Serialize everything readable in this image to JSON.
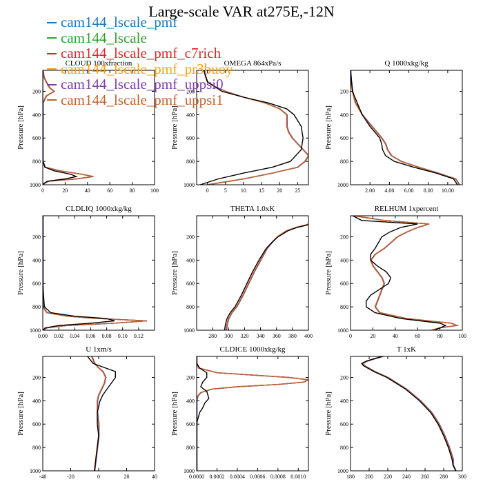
{
  "figure_title": "Large-scale VAR at275E,-12N",
  "legend": [
    {
      "name": "cam144_lscale_pmf",
      "color": "#1f77b4"
    },
    {
      "name": "cam144_lscale",
      "color": "#2ca02c"
    },
    {
      "name": "cam144_lscale_pmf_c7rich",
      "color": "#d62728"
    },
    {
      "name": "cam144_lscale_pmf_pr3buoy",
      "color": "#ff9f0e"
    },
    {
      "name": "cam144_lscale_pmf_uppsi0",
      "color": "#7b3fa6"
    },
    {
      "name": "cam144_lscale_pmf_uppsi1",
      "color": "#c0622f"
    }
  ],
  "colors": {
    "control": "#000000",
    "grid_frame": "#000000"
  },
  "chart_data": [
    {
      "type": "line",
      "title": "CLOUD 100xfraction",
      "ylabel": "Pressure [hPa]",
      "xlim": [
        0,
        100
      ],
      "xticks": [
        0,
        20,
        40,
        60,
        80,
        100
      ],
      "xtick_labels": [
        "0",
        "20",
        "40",
        "60",
        "80",
        "100"
      ],
      "ylim": [
        1000,
        20
      ],
      "yticks": [
        200,
        400,
        600,
        800,
        1000
      ],
      "ytick_labels": [
        "200",
        "400",
        "600",
        "800",
        "1000"
      ],
      "series": [
        {
          "style": "multi",
          "pressure": [
            20,
            80,
            120,
            170,
            200,
            240,
            300,
            400,
            500,
            600,
            700,
            800,
            850,
            880,
            910,
            930,
            950,
            970,
            990,
            1000
          ],
          "values": [
            0,
            1,
            3,
            6,
            10,
            3,
            0,
            0,
            0,
            0,
            0,
            0,
            2,
            15,
            35,
            45,
            30,
            5,
            1,
            0
          ]
        },
        {
          "style": "control",
          "pressure": [
            20,
            300,
            600,
            800,
            850,
            880,
            910,
            930,
            950,
            970,
            990,
            1000
          ],
          "values": [
            0,
            0,
            0,
            0,
            2,
            10,
            25,
            30,
            20,
            4,
            1,
            0
          ]
        }
      ]
    },
    {
      "type": "line",
      "title": "OMEGA 864xPa/s",
      "ylabel": "Pressure [hPa]",
      "xlim": [
        -3,
        28
      ],
      "xticks": [
        0,
        5,
        10,
        15,
        20,
        25
      ],
      "xtick_labels": [
        "0",
        "5",
        "10",
        "15",
        "20",
        "25"
      ],
      "ylim": [
        1000,
        20
      ],
      "yticks": [
        200,
        400,
        600,
        800,
        1000
      ],
      "ytick_labels": [
        "200",
        "400",
        "600",
        "800",
        "1000"
      ],
      "series": [
        {
          "style": "multi",
          "pressure": [
            20,
            80,
            120,
            160,
            200,
            250,
            300,
            350,
            400,
            450,
            500,
            550,
            600,
            650,
            700,
            750,
            800,
            850,
            900,
            950,
            1000
          ],
          "values": [
            -1,
            -0.5,
            0,
            2,
            5,
            10,
            16,
            20,
            22,
            22,
            22,
            22.5,
            23.5,
            25,
            26.5,
            28,
            27,
            25,
            18,
            10,
            0
          ]
        },
        {
          "style": "control",
          "pressure": [
            20,
            120,
            200,
            250,
            300,
            350,
            400,
            450,
            500,
            600,
            700,
            800,
            850,
            900,
            950,
            1000
          ],
          "values": [
            -1,
            0,
            4,
            10,
            17,
            22,
            24,
            25,
            26,
            26.5,
            26,
            23,
            18,
            10,
            3,
            -2
          ]
        }
      ]
    },
    {
      "type": "line",
      "title": "Q 1000xkg/kg",
      "ylabel": "Pressure [hPa]",
      "xlim": [
        0,
        11.5
      ],
      "xticks": [
        2,
        4,
        6,
        8,
        10
      ],
      "xtick_labels": [
        "2.00",
        "4.00",
        "6.00",
        "8.00",
        "10.00"
      ],
      "ylim": [
        1000,
        20
      ],
      "yticks": [
        200,
        400,
        600,
        800,
        1000
      ],
      "ytick_labels": [
        "200",
        "400",
        "600",
        "800",
        "1000"
      ],
      "series": [
        {
          "style": "multi",
          "pressure": [
            20,
            100,
            200,
            300,
            400,
            500,
            600,
            650,
            700,
            750,
            800,
            850,
            900,
            950,
            1000
          ],
          "values": [
            0,
            0.05,
            0.2,
            0.5,
            1.2,
            2.2,
            3.2,
            3.6,
            3.8,
            4.2,
            5.2,
            7,
            9,
            10.8,
            11.2
          ]
        },
        {
          "style": "control",
          "pressure": [
            20,
            200,
            400,
            500,
            600,
            650,
            700,
            750,
            800,
            850,
            900,
            950,
            1000
          ],
          "values": [
            0,
            0.2,
            1.2,
            2.0,
            3.0,
            3.2,
            3.3,
            3.6,
            4.5,
            6.5,
            8.8,
            10.6,
            11.0
          ]
        }
      ]
    },
    {
      "type": "line",
      "title": "CLDLIQ 1000xkg/kg",
      "ylabel": "Pressure [hPa]",
      "xlim": [
        0,
        0.14
      ],
      "xticks": [
        0,
        0.02,
        0.04,
        0.06,
        0.08,
        0.1,
        0.12
      ],
      "xtick_labels": [
        "0.00",
        "0.02",
        "0.04",
        "0.06",
        "0.08",
        "0.10",
        "0.12"
      ],
      "ylim": [
        1000,
        20
      ],
      "yticks": [
        200,
        400,
        600,
        800,
        1000
      ],
      "ytick_labels": [
        "200",
        "400",
        "600",
        "800",
        "1000"
      ],
      "series": [
        {
          "style": "multi",
          "pressure": [
            20,
            600,
            800,
            850,
            880,
            900,
            920,
            940,
            960,
            980,
            1000
          ],
          "values": [
            0,
            0,
            0,
            0.005,
            0.03,
            0.07,
            0.13,
            0.09,
            0.03,
            0.005,
            0
          ]
        },
        {
          "style": "control",
          "pressure": [
            20,
            600,
            800,
            850,
            880,
            900,
            920,
            940,
            960,
            980,
            1000
          ],
          "values": [
            0,
            0,
            0.002,
            0.01,
            0.04,
            0.08,
            0.09,
            0.06,
            0.02,
            0.003,
            0
          ]
        }
      ]
    },
    {
      "type": "line",
      "title": "THETA 1.0xK",
      "ylabel": "Pressure [hPa]",
      "xlim": [
        260,
        400
      ],
      "xticks": [
        280,
        300,
        320,
        340,
        360,
        380,
        400
      ],
      "xtick_labels": [
        "280",
        "300",
        "320",
        "340",
        "360",
        "380",
        "400"
      ],
      "ylim": [
        1000,
        20
      ],
      "yticks": [
        200,
        400,
        600,
        800,
        1000
      ],
      "ytick_labels": [
        "200",
        "400",
        "600",
        "800",
        "1000"
      ],
      "series": [
        {
          "style": "multi",
          "pressure": [
            1000,
            950,
            900,
            850,
            800,
            700,
            600,
            500,
            400,
            300,
            250,
            200,
            150,
            120,
            100,
            90
          ],
          "values": [
            297,
            298,
            300,
            304,
            310,
            318,
            325,
            332,
            340,
            348,
            354,
            361,
            372,
            384,
            396,
            400
          ]
        },
        {
          "style": "control",
          "pressure": [
            1000,
            950,
            900,
            850,
            800,
            700,
            600,
            500,
            400,
            300,
            250,
            200,
            150,
            120,
            100,
            90
          ],
          "values": [
            295,
            296,
            298,
            302,
            308,
            316,
            323,
            330,
            338,
            347,
            354,
            362,
            374,
            386,
            398,
            401
          ]
        }
      ]
    },
    {
      "type": "line",
      "title": "RELHUM 1xpercent",
      "ylabel": "Pressure [hPa]",
      "xlim": [
        0,
        100
      ],
      "xticks": [
        0,
        20,
        40,
        60,
        80,
        100
      ],
      "xtick_labels": [
        "0",
        "20",
        "40",
        "60",
        "80",
        "100"
      ],
      "ylim": [
        1000,
        20
      ],
      "yticks": [
        200,
        400,
        600,
        800,
        1000
      ],
      "ytick_labels": [
        "200",
        "400",
        "600",
        "800",
        "1000"
      ],
      "series": [
        {
          "style": "multi",
          "pressure": [
            20,
            60,
            90,
            120,
            160,
            200,
            250,
            300,
            350,
            400,
            450,
            500,
            550,
            600,
            650,
            700,
            750,
            800,
            850,
            900,
            940,
            960,
            980,
            1000
          ],
          "values": [
            3,
            30,
            70,
            60,
            50,
            42,
            36,
            30,
            22,
            18,
            20,
            24,
            28,
            30,
            28,
            26,
            24,
            22,
            26,
            50,
            90,
            95,
            80,
            72
          ]
        },
        {
          "style": "control",
          "pressure": [
            20,
            60,
            90,
            120,
            160,
            200,
            250,
            300,
            350,
            400,
            450,
            500,
            550,
            600,
            650,
            700,
            750,
            800,
            850,
            900,
            940,
            960,
            980,
            1000
          ],
          "values": [
            2,
            10,
            60,
            45,
            35,
            28,
            25,
            22,
            18,
            18,
            24,
            32,
            36,
            34,
            26,
            18,
            14,
            14,
            22,
            45,
            80,
            85,
            80,
            75
          ]
        }
      ]
    },
    {
      "type": "line",
      "title": "U 1xm/s",
      "ylabel": "Pressure [hPa]",
      "xlim": [
        -40,
        40
      ],
      "xticks": [
        -40,
        -20,
        0,
        20,
        40
      ],
      "xtick_labels": [
        "-40",
        "-20",
        "0",
        "20",
        "40"
      ],
      "ylim": [
        1000,
        20
      ],
      "yticks": [
        200,
        400,
        600,
        800,
        1000
      ],
      "ytick_labels": [
        "200",
        "400",
        "600",
        "800",
        "1000"
      ],
      "series": [
        {
          "style": "multi",
          "pressure": [
            20,
            80,
            120,
            150,
            200,
            250,
            300,
            350,
            400,
            500,
            600,
            700,
            800,
            900,
            1000
          ],
          "values": [
            -5,
            -3,
            0,
            3,
            5,
            4,
            2,
            0,
            -1,
            -1,
            0,
            0,
            -1,
            -2,
            -3
          ]
        },
        {
          "style": "control",
          "pressure": [
            20,
            80,
            120,
            150,
            200,
            250,
            300,
            350,
            400,
            500,
            600,
            700,
            800,
            900,
            1000
          ],
          "values": [
            -8,
            -4,
            5,
            12,
            12,
            9,
            6,
            3,
            1,
            -1,
            -1,
            0,
            -1,
            -2,
            -3
          ]
        }
      ]
    },
    {
      "type": "line",
      "title": "CLDICE 1000xkg/kg",
      "ylabel": "Pressure [hPa]",
      "xlim": [
        0,
        0.0011
      ],
      "xticks": [
        0,
        0.0002,
        0.0004,
        0.0006,
        0.0008,
        0.001
      ],
      "xtick_labels": [
        "0.0000",
        "0.0002",
        "0.0004",
        "0.0006",
        "0.0008",
        "0.0010"
      ],
      "ylim": [
        1000,
        20
      ],
      "yticks": [
        200,
        400,
        600,
        800,
        1000
      ],
      "ytick_labels": [
        "200",
        "400",
        "600",
        "800",
        "1000"
      ],
      "series": [
        {
          "style": "multi",
          "pressure": [
            20,
            80,
            120,
            160,
            200,
            220,
            240,
            260,
            280,
            300,
            330,
            360,
            400,
            500,
            600,
            1000
          ],
          "values": [
            0,
            0,
            2e-05,
            0.0002,
            0.0009,
            0.0011,
            0.00105,
            0.0008,
            0.0004,
            0.00015,
            4e-05,
            1e-05,
            0,
            0,
            0,
            0
          ]
        },
        {
          "style": "control",
          "pressure": [
            20,
            80,
            120,
            160,
            200,
            240,
            280,
            320,
            380,
            420,
            460,
            500,
            560,
            600,
            1000
          ],
          "values": [
            0,
            0,
            3e-05,
            0.0001,
            0.0001,
            6e-05,
            4e-05,
            0.0001,
            0.00012,
            8e-05,
            6e-05,
            3e-05,
            1e-05,
            0,
            0
          ]
        }
      ]
    },
    {
      "type": "line",
      "title": "T 1xK",
      "ylabel": "Pressure [hPa]",
      "xlim": [
        180,
        300
      ],
      "xticks": [
        180,
        200,
        220,
        240,
        260,
        280,
        300
      ],
      "xtick_labels": [
        "180",
        "200",
        "220",
        "240",
        "260",
        "280",
        "300"
      ],
      "ylim": [
        1000,
        20
      ],
      "yticks": [
        200,
        400,
        600,
        800,
        1000
      ],
      "ytick_labels": [
        "200",
        "400",
        "600",
        "800",
        "1000"
      ],
      "series": [
        {
          "style": "multi",
          "pressure": [
            20,
            40,
            60,
            80,
            100,
            150,
            200,
            300,
            400,
            500,
            600,
            700,
            800,
            850,
            900,
            950,
            1000
          ],
          "values": [
            215,
            206,
            198,
            193,
            195,
            206,
            220,
            240,
            255,
            267,
            275,
            281,
            286,
            288,
            290,
            290,
            293
          ]
        },
        {
          "style": "control",
          "pressure": [
            20,
            40,
            60,
            80,
            100,
            150,
            200,
            300,
            400,
            500,
            600,
            700,
            800,
            850,
            900,
            950,
            1000
          ],
          "values": [
            214,
            205,
            197,
            192,
            194,
            205,
            219,
            239,
            254,
            266,
            274,
            280,
            285,
            287,
            289,
            290,
            293
          ]
        }
      ]
    }
  ]
}
